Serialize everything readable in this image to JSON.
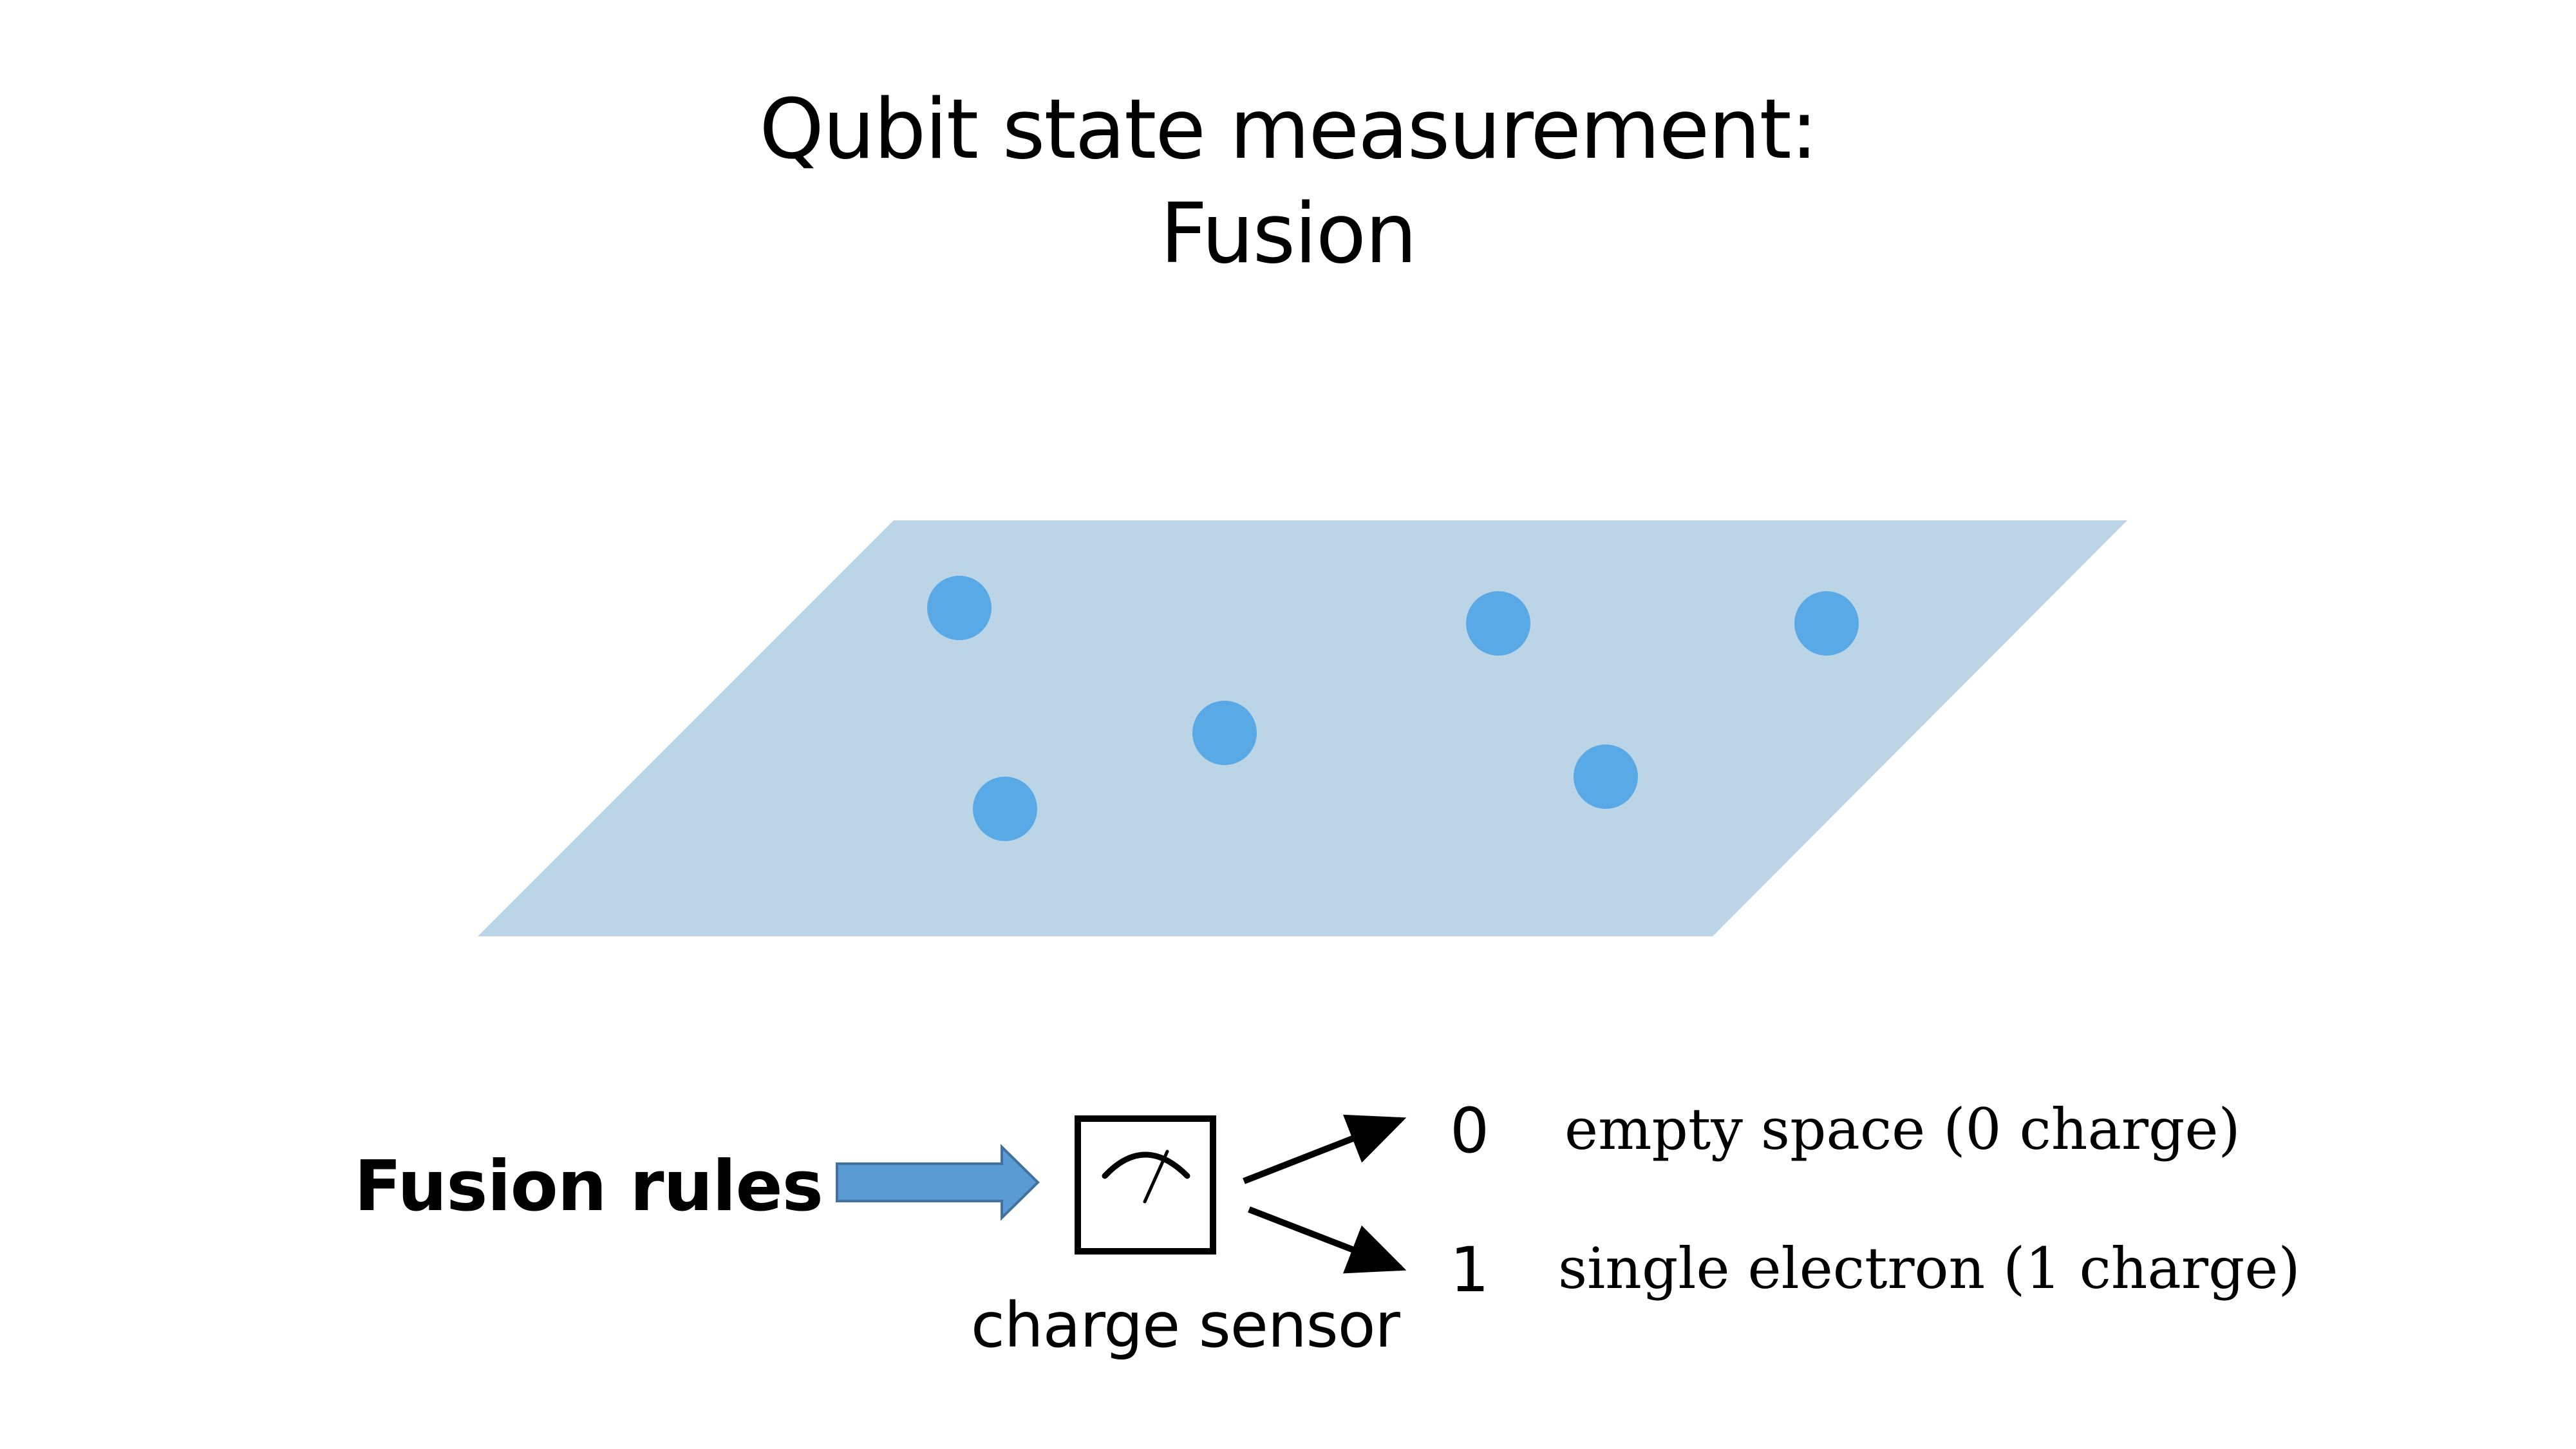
{
  "title": {
    "line1": "Qubit state measurement:",
    "line2": "Fusion"
  },
  "plane": {
    "fill_color": "#bcd5e6",
    "particle_color": "#58a9e6",
    "particle_count": 6
  },
  "fusion_rules": {
    "label": "Fusion rules",
    "arrow_color": "#5b9bd5",
    "arrow_outline": "#41719c"
  },
  "charge_sensor": {
    "label": "charge sensor",
    "icon": "meter-gauge-icon"
  },
  "outcomes": [
    {
      "value": "0",
      "description": "empty space (0 charge)"
    },
    {
      "value": "1",
      "description": "single electron (1 charge)"
    }
  ]
}
